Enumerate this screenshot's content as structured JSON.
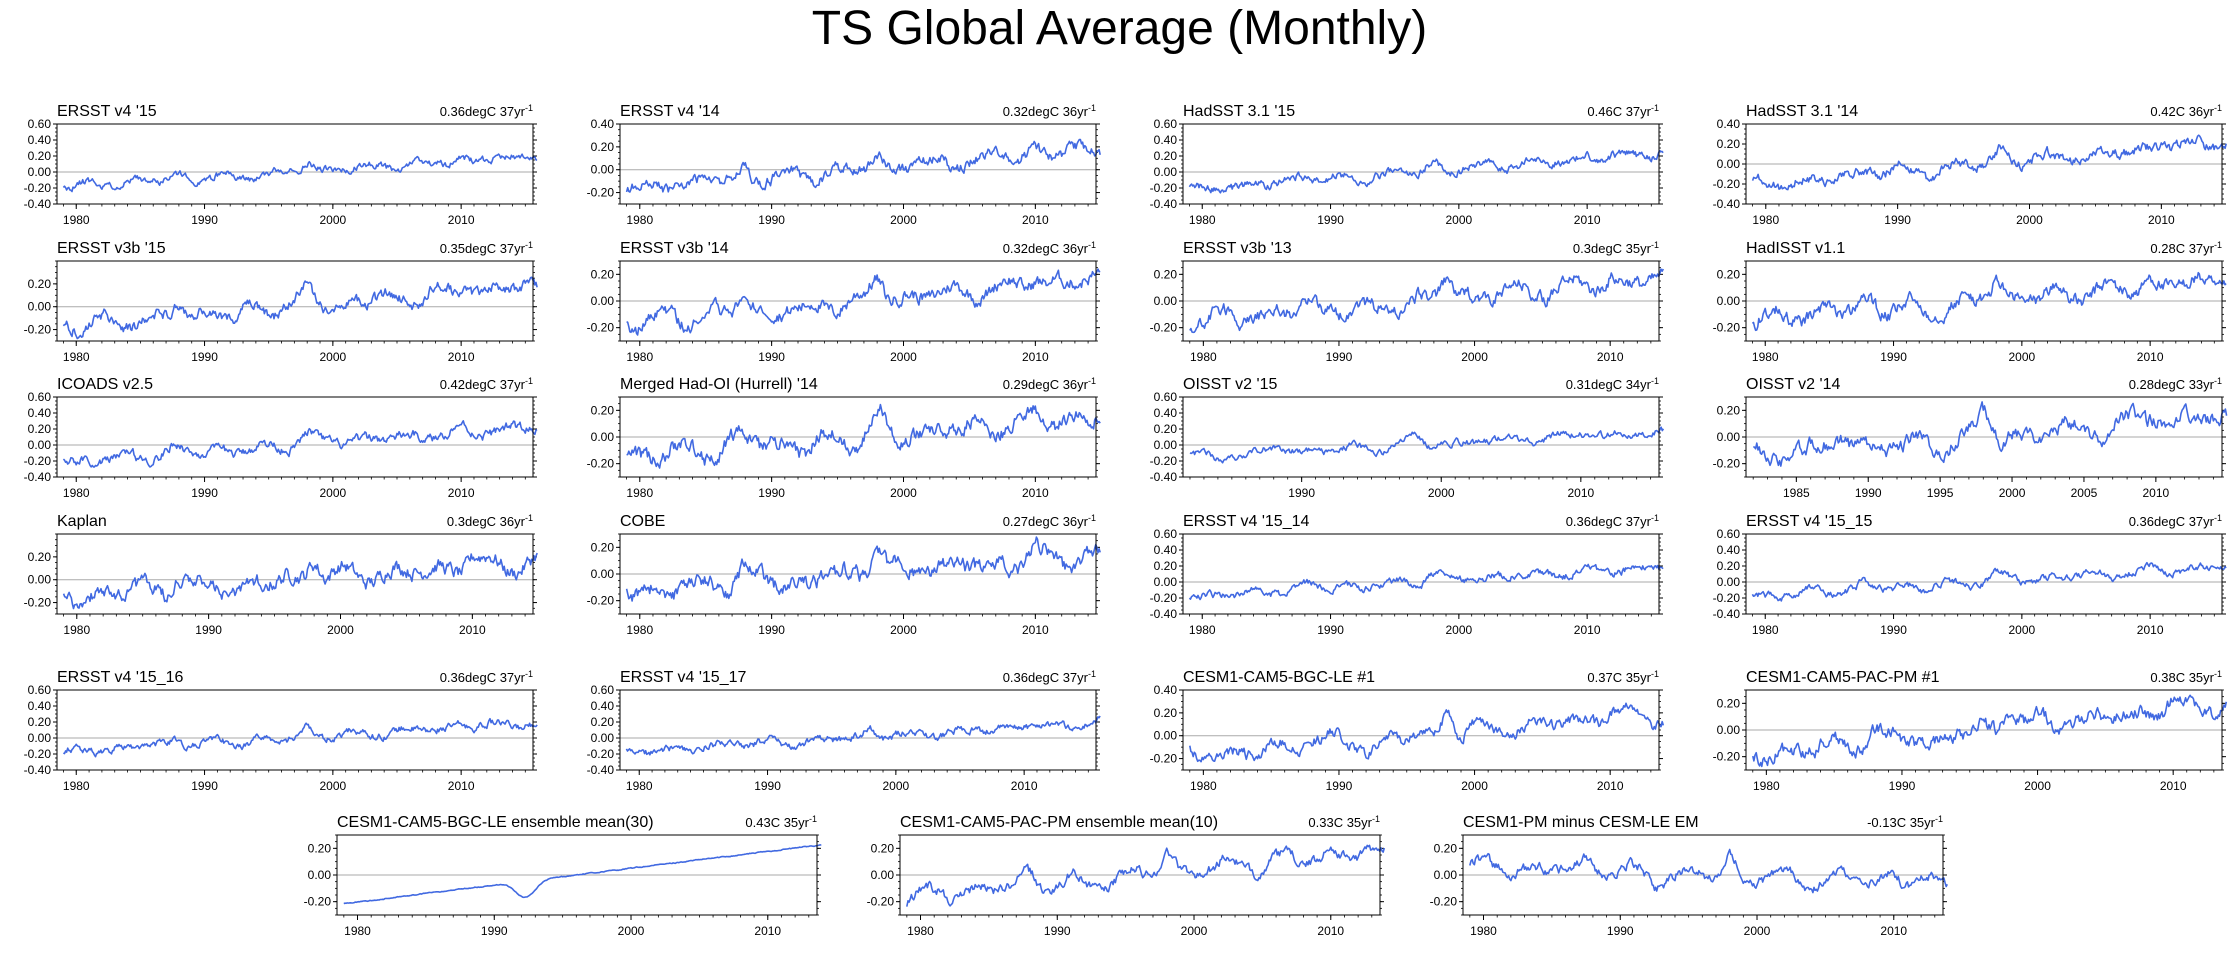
{
  "page_title": "TS Global Average (Monthly)",
  "colors": {
    "series": "#4169e1",
    "axis": "#000000",
    "zero_line": "#aaaaaa"
  },
  "chart_data": [
    {
      "type": "line",
      "title": "ERSST v4 '15",
      "trend": {
        "value": "0.36degC",
        "period": "37yr",
        "exponent": "-1"
      },
      "x": [
        1979,
        2015
      ],
      "ylim": [
        -0.4,
        0.6
      ],
      "yticks": [
        -0.4,
        -0.2,
        0,
        0.2,
        0.4,
        0.6
      ],
      "xticks": [
        1980,
        1990,
        2000,
        2010
      ],
      "series": [
        {
          "name": "ERSST v4 '15",
          "seed": 11,
          "trend": 0.36,
          "amp": 0.05,
          "noise": 0.035
        }
      ]
    },
    {
      "type": "line",
      "title": "ERSST v4 '14",
      "trend": {
        "value": "0.32degC",
        "period": "36yr",
        "exponent": "-1"
      },
      "x": [
        1979,
        2014
      ],
      "ylim": [
        -0.3,
        0.4
      ],
      "yticks": [
        -0.2,
        0,
        0.2,
        0.4
      ],
      "xticks": [
        1980,
        1990,
        2000,
        2010
      ],
      "series": [
        {
          "name": "ERSST v4 '14",
          "seed": 12,
          "trend": 0.32,
          "amp": 0.06,
          "noise": 0.04
        }
      ]
    },
    {
      "type": "line",
      "title": "HadSST 3.1 '15",
      "trend": {
        "value": "0.46C",
        "period": "37yr",
        "exponent": "-1"
      },
      "x": [
        1979,
        2015
      ],
      "ylim": [
        -0.4,
        0.6
      ],
      "yticks": [
        -0.4,
        -0.2,
        0,
        0.2,
        0.4,
        0.6
      ],
      "xticks": [
        1980,
        1990,
        2000,
        2010
      ],
      "series": [
        {
          "name": "HadSST 3.1 '15",
          "seed": 13,
          "trend": 0.46,
          "amp": 0.05,
          "noise": 0.04
        }
      ]
    },
    {
      "type": "line",
      "title": "HadSST 3.1 '14",
      "trend": {
        "value": "0.42C",
        "period": "36yr",
        "exponent": "-1"
      },
      "x": [
        1979,
        2014
      ],
      "ylim": [
        -0.4,
        0.4
      ],
      "yticks": [
        -0.4,
        -0.2,
        0,
        0.2,
        0.4
      ],
      "xticks": [
        1980,
        1990,
        2000,
        2010
      ],
      "series": [
        {
          "name": "HadSST 3.1 '14",
          "seed": 14,
          "trend": 0.42,
          "amp": 0.07,
          "noise": 0.04
        }
      ]
    },
    {
      "type": "line",
      "title": "ERSST v3b '15",
      "trend": {
        "value": "0.35degC",
        "period": "37yr",
        "exponent": "-1"
      },
      "x": [
        1979,
        2015
      ],
      "ylim": [
        -0.3,
        0.4
      ],
      "yticks": [
        -0.2,
        0,
        0.2
      ],
      "xticks": [
        1980,
        1990,
        2000,
        2010
      ],
      "series": [
        {
          "name": "ERSST v3b '15",
          "seed": 21,
          "trend": 0.35,
          "amp": 0.07,
          "noise": 0.04
        }
      ]
    },
    {
      "type": "line",
      "title": "ERSST v3b '14",
      "trend": {
        "value": "0.32degC",
        "period": "36yr",
        "exponent": "-1"
      },
      "x": [
        1979,
        2014
      ],
      "ylim": [
        -0.3,
        0.3
      ],
      "yticks": [
        -0.2,
        0,
        0.2
      ],
      "xticks": [
        1980,
        1990,
        2000,
        2010
      ],
      "series": [
        {
          "name": "ERSST v3b '14",
          "seed": 22,
          "trend": 0.32,
          "amp": 0.07,
          "noise": 0.04
        }
      ]
    },
    {
      "type": "line",
      "title": "ERSST v3b '13",
      "trend": {
        "value": "0.3degC",
        "period": "35yr",
        "exponent": "-1"
      },
      "x": [
        1979,
        2013
      ],
      "ylim": [
        -0.3,
        0.3
      ],
      "yticks": [
        -0.2,
        0,
        0.2
      ],
      "xticks": [
        1980,
        1990,
        2000,
        2010
      ],
      "series": [
        {
          "name": "ERSST v3b '13",
          "seed": 23,
          "trend": 0.3,
          "amp": 0.07,
          "noise": 0.04
        }
      ]
    },
    {
      "type": "line",
      "title": "HadISST v1.1",
      "trend": {
        "value": "0.28C",
        "period": "37yr",
        "exponent": "-1"
      },
      "x": [
        1979,
        2015
      ],
      "ylim": [
        -0.3,
        0.3
      ],
      "yticks": [
        -0.2,
        0,
        0.2
      ],
      "xticks": [
        1980,
        1990,
        2000,
        2010
      ],
      "series": [
        {
          "name": "HadISST v1.1",
          "seed": 24,
          "trend": 0.28,
          "amp": 0.07,
          "noise": 0.04
        }
      ]
    },
    {
      "type": "line",
      "title": "ICOADS v2.5",
      "trend": {
        "value": "0.42degC",
        "period": "37yr",
        "exponent": "-1"
      },
      "x": [
        1979,
        2015
      ],
      "ylim": [
        -0.4,
        0.6
      ],
      "yticks": [
        -0.4,
        -0.2,
        0,
        0.2,
        0.4,
        0.6
      ],
      "xticks": [
        1980,
        1990,
        2000,
        2010
      ],
      "series": [
        {
          "name": "ICOADS v2.5",
          "seed": 31,
          "trend": 0.42,
          "amp": 0.06,
          "noise": 0.045
        }
      ]
    },
    {
      "type": "line",
      "title": "Merged Had-OI (Hurrell) '14",
      "trend": {
        "value": "0.29degC",
        "period": "36yr",
        "exponent": "-1"
      },
      "x": [
        1979,
        2014
      ],
      "ylim": [
        -0.3,
        0.3
      ],
      "yticks": [
        -0.2,
        0,
        0.2
      ],
      "xticks": [
        1980,
        1990,
        2000,
        2010
      ],
      "series": [
        {
          "name": "Merged Had-OI (Hurrell) '14",
          "seed": 32,
          "trend": 0.29,
          "amp": 0.08,
          "noise": 0.045
        }
      ]
    },
    {
      "type": "line",
      "title": "OISST v2 '15",
      "trend": {
        "value": "0.31degC",
        "period": "34yr",
        "exponent": "-1"
      },
      "x": [
        1982,
        2015
      ],
      "ylim": [
        -0.4,
        0.6
      ],
      "yticks": [
        -0.4,
        -0.2,
        0,
        0.2,
        0.4,
        0.6
      ],
      "xticks": [
        1990,
        2000,
        2010
      ],
      "series": [
        {
          "name": "OISST v2 '15",
          "seed": 33,
          "trend": 0.31,
          "amp": 0.05,
          "noise": 0.035
        }
      ]
    },
    {
      "type": "line",
      "title": "OISST v2 '14",
      "trend": {
        "value": "0.28degC",
        "period": "33yr",
        "exponent": "-1"
      },
      "x": [
        1982,
        2014
      ],
      "ylim": [
        -0.3,
        0.3
      ],
      "yticks": [
        -0.2,
        0,
        0.2
      ],
      "xticks": [
        1985,
        1990,
        1995,
        2000,
        2005,
        2010
      ],
      "series": [
        {
          "name": "OISST v2 '14",
          "seed": 34,
          "trend": 0.28,
          "amp": 0.08,
          "noise": 0.045
        }
      ]
    },
    {
      "type": "line",
      "title": "Kaplan",
      "trend": {
        "value": "0.3degC",
        "period": "36yr",
        "exponent": "-1"
      },
      "x": [
        1979,
        2014
      ],
      "ylim": [
        -0.3,
        0.4
      ],
      "yticks": [
        -0.2,
        0,
        0.2
      ],
      "xticks": [
        1980,
        1990,
        2000,
        2010
      ],
      "series": [
        {
          "name": "Kaplan",
          "seed": 41,
          "trend": 0.3,
          "amp": 0.09,
          "noise": 0.05
        }
      ]
    },
    {
      "type": "line",
      "title": "COBE",
      "trend": {
        "value": "0.27degC",
        "period": "36yr",
        "exponent": "-1"
      },
      "x": [
        1979,
        2014
      ],
      "ylim": [
        -0.3,
        0.3
      ],
      "yticks": [
        -0.2,
        0,
        0.2
      ],
      "xticks": [
        1980,
        1990,
        2000,
        2010
      ],
      "series": [
        {
          "name": "COBE",
          "seed": 42,
          "trend": 0.27,
          "amp": 0.08,
          "noise": 0.045
        }
      ]
    },
    {
      "type": "line",
      "title": "ERSST v4 '15_14",
      "trend": {
        "value": "0.36degC",
        "period": "37yr",
        "exponent": "-1"
      },
      "x": [
        1979,
        2015
      ],
      "ylim": [
        -0.4,
        0.6
      ],
      "yticks": [
        -0.4,
        -0.2,
        0,
        0.2,
        0.4,
        0.6
      ],
      "xticks": [
        1980,
        1990,
        2000,
        2010
      ],
      "series": [
        {
          "name": "ERSST v4 '15_14",
          "seed": 43,
          "trend": 0.36,
          "amp": 0.05,
          "noise": 0.035
        }
      ]
    },
    {
      "type": "line",
      "title": "ERSST v4 '15_15",
      "trend": {
        "value": "0.36degC",
        "period": "37yr",
        "exponent": "-1"
      },
      "x": [
        1979,
        2015
      ],
      "ylim": [
        -0.4,
        0.6
      ],
      "yticks": [
        -0.4,
        -0.2,
        0,
        0.2,
        0.4,
        0.6
      ],
      "xticks": [
        1980,
        1990,
        2000,
        2010
      ],
      "series": [
        {
          "name": "ERSST v4 '15_15",
          "seed": 44,
          "trend": 0.36,
          "amp": 0.05,
          "noise": 0.035
        }
      ]
    },
    {
      "type": "line",
      "title": "ERSST v4 '15_16",
      "trend": {
        "value": "0.36degC",
        "period": "37yr",
        "exponent": "-1"
      },
      "x": [
        1979,
        2015
      ],
      "ylim": [
        -0.4,
        0.6
      ],
      "yticks": [
        -0.4,
        -0.2,
        0,
        0.2,
        0.4,
        0.6
      ],
      "xticks": [
        1980,
        1990,
        2000,
        2010
      ],
      "series": [
        {
          "name": "ERSST v4 '15_16",
          "seed": 51,
          "trend": 0.36,
          "amp": 0.05,
          "noise": 0.035
        }
      ]
    },
    {
      "type": "line",
      "title": "ERSST v4 '15_17",
      "trend": {
        "value": "0.36degC",
        "period": "37yr",
        "exponent": "-1"
      },
      "x": [
        1979,
        2015
      ],
      "ylim": [
        -0.4,
        0.6
      ],
      "yticks": [
        -0.4,
        -0.2,
        0,
        0.2,
        0.4,
        0.6
      ],
      "xticks": [
        1980,
        1990,
        2000,
        2010
      ],
      "series": [
        {
          "name": "ERSST v4 '15_17",
          "seed": 52,
          "trend": 0.36,
          "amp": 0.05,
          "noise": 0.035
        }
      ]
    },
    {
      "type": "line",
      "title": "CESM1-CAM5-BGC-LE #1",
      "trend": {
        "value": "0.37C",
        "period": "35yr",
        "exponent": "-1"
      },
      "x": [
        1979,
        2013
      ],
      "ylim": [
        -0.3,
        0.4
      ],
      "yticks": [
        -0.2,
        0,
        0.2,
        0.4
      ],
      "xticks": [
        1980,
        1990,
        2000,
        2010
      ],
      "series": [
        {
          "name": "CESM1-CAM5-BGC-LE #1",
          "seed": 53,
          "trend": 0.37,
          "amp": 0.1,
          "noise": 0.04
        }
      ]
    },
    {
      "type": "line",
      "title": "CESM1-CAM5-PAC-PM #1",
      "trend": {
        "value": "0.38C",
        "period": "35yr",
        "exponent": "-1"
      },
      "x": [
        1979,
        2013
      ],
      "ylim": [
        -0.3,
        0.3
      ],
      "yticks": [
        -0.2,
        0,
        0.2
      ],
      "xticks": [
        1980,
        1990,
        2000,
        2010
      ],
      "series": [
        {
          "name": "CESM1-CAM5-PAC-PM #1",
          "seed": 54,
          "trend": 0.38,
          "amp": 0.08,
          "noise": 0.04
        }
      ]
    },
    {
      "type": "line",
      "title": "CESM1-CAM5-BGC-LE ensemble mean(30)",
      "trend": {
        "value": "0.43C",
        "period": "35yr",
        "exponent": "-1"
      },
      "x": [
        1979,
        2013
      ],
      "ylim": [
        -0.3,
        0.3
      ],
      "yticks": [
        -0.2,
        0,
        0.2
      ],
      "xticks": [
        1980,
        1990,
        2000,
        2010
      ],
      "series": [
        {
          "name": "CESM1-CAM5-BGC-LE ensemble mean(30)",
          "seed": 61,
          "trend": 0.43,
          "amp": 0.01,
          "noise": 0.006
        }
      ]
    },
    {
      "type": "line",
      "title": "CESM1-CAM5-PAC-PM ensemble mean(10)",
      "trend": {
        "value": "0.33C",
        "period": "35yr",
        "exponent": "-1"
      },
      "x": [
        1979,
        2013
      ],
      "ylim": [
        -0.3,
        0.3
      ],
      "yticks": [
        -0.2,
        0,
        0.2
      ],
      "xticks": [
        1980,
        1990,
        2000,
        2010
      ],
      "series": [
        {
          "name": "CESM1-CAM5-PAC-PM ensemble mean(10)",
          "seed": 62,
          "trend": 0.33,
          "amp": 0.07,
          "noise": 0.03
        }
      ]
    },
    {
      "type": "line",
      "title": "CESM1-PM minus CESM-LE EM",
      "trend": {
        "value": "-0.13C",
        "period": "35yr",
        "exponent": "-1"
      },
      "x": [
        1979,
        2013
      ],
      "ylim": [
        -0.3,
        0.3
      ],
      "yticks": [
        -0.2,
        0,
        0.2
      ],
      "xticks": [
        1980,
        1990,
        2000,
        2010
      ],
      "series": [
        {
          "name": "CESM1-PM minus CESM-LE EM",
          "seed": 63,
          "trend": -0.13,
          "amp": 0.07,
          "noise": 0.03
        }
      ]
    }
  ]
}
